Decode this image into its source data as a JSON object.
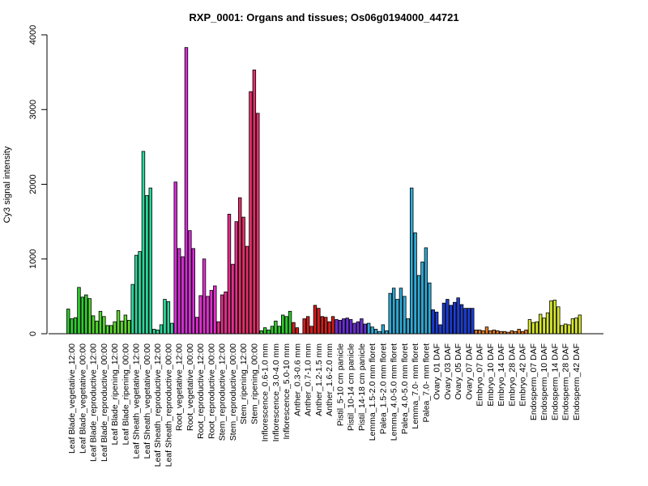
{
  "chart_data": {
    "type": "bar",
    "title": "RXP_0001: Organs and tissues; Os06g0194000_44721",
    "xlabel": "",
    "ylabel": "Cy3 signal intensity",
    "ylim": [
      0,
      4000
    ],
    "yticks": [
      0,
      1000,
      2000,
      3000,
      4000
    ],
    "grid": false,
    "legend": "none",
    "groups": [
      {
        "label": "Leaf Blade_vegetative_12:00",
        "color": "#2ecc2e",
        "values": [
          330,
          200,
          215
        ]
      },
      {
        "label": "Leaf Blade_vegetative_00:00",
        "color": "#2ecc2e",
        "values": [
          620,
          490,
          520
        ]
      },
      {
        "label": "Leaf Blade_reproductive_12:00",
        "color": "#4fd62e",
        "values": [
          470,
          240,
          170
        ]
      },
      {
        "label": "Leaf Blade_reproductive_00:00",
        "color": "#4fd62e",
        "values": [
          300,
          230,
          110
        ]
      },
      {
        "label": "Leaf Blade_ripening_12:00",
        "color": "#5ed62e",
        "values": [
          110,
          160,
          310
        ]
      },
      {
        "label": "Leaf Blade_ripening_00:00",
        "color": "#5ed62e",
        "values": [
          170,
          250,
          180
        ]
      },
      {
        "label": "Leaf Sheath_vegetative_12:00",
        "color": "#2ed69a",
        "values": [
          660,
          1050,
          1100
        ]
      },
      {
        "label": "Leaf Sheath_vegetative_00:00",
        "color": "#2ed69a",
        "values": [
          2440,
          1850,
          1950
        ]
      },
      {
        "label": "Leaf Sheath_reproductive_12:00",
        "color": "#2ed69a",
        "values": [
          60,
          50,
          120
        ]
      },
      {
        "label": "Leaf Sheath_reproductive_00:00",
        "color": "#2ed69a",
        "values": [
          460,
          430,
          140
        ]
      },
      {
        "label": "Root_vegetative_12:00",
        "color": "#d62ed6",
        "values": [
          2030,
          1140,
          1030
        ]
      },
      {
        "label": "Root_vegetative_00:00",
        "color": "#d62ed6",
        "values": [
          3830,
          1380,
          1140
        ]
      },
      {
        "label": "Root_reproductive_12:00",
        "color": "#e22ed0",
        "values": [
          220,
          510,
          1000
        ]
      },
      {
        "label": "Root_reproductive_00:00",
        "color": "#e22ed0",
        "values": [
          500,
          580,
          640
        ]
      },
      {
        "label": "Stem_reproductive_12:00",
        "color": "#e62e8c",
        "values": [
          160,
          520,
          560
        ]
      },
      {
        "label": "Stem_reproductive_00:00",
        "color": "#e62e8c",
        "values": [
          1600,
          930,
          1500
        ]
      },
      {
        "label": "Stem_ripening_12:00",
        "color": "#e62e6a",
        "values": [
          1820,
          1560,
          1170
        ]
      },
      {
        "label": "Stem_ripening_00:00",
        "color": "#e62e6a",
        "values": [
          3240,
          3530,
          2950
        ]
      },
      {
        "label": "Inflorescence_0.6-1.0 mm",
        "color": "#2ecc2e",
        "values": [
          40,
          80,
          50
        ]
      },
      {
        "label": "Inflorescence_3.0-4.0 mm",
        "color": "#2ecc2e",
        "values": [
          100,
          170,
          100
        ]
      },
      {
        "label": "Inflorescence_5.0-10 mm",
        "color": "#2ecc2e",
        "values": [
          250,
          230,
          300
        ]
      },
      {
        "label": "Anther_0.3-0.6 mm",
        "color": "#d61c1c",
        "values": [
          150,
          80,
          0
        ]
      },
      {
        "label": "Anther_0.7-1.0 mm",
        "color": "#d61c1c",
        "values": [
          200,
          230,
          100
        ]
      },
      {
        "label": "Anther_1.2-1.5 mm",
        "color": "#d61c1c",
        "values": [
          380,
          340,
          230
        ]
      },
      {
        "label": "Anther_1.6-2.0 mm",
        "color": "#d61c1c",
        "values": [
          220,
          160,
          230
        ]
      },
      {
        "label": "Pistil_5-10 cm panicle",
        "color": "#6a2ed6",
        "values": [
          190,
          180,
          200
        ]
      },
      {
        "label": "Pistil_10-14 cm panicle",
        "color": "#6a2ed6",
        "values": [
          210,
          190,
          140
        ]
      },
      {
        "label": "Pistil_14-18 cm panicle",
        "color": "#6a2ed6",
        "values": [
          160,
          200,
          130
        ]
      },
      {
        "label": "Lemma_1.5-2.0 mm floret",
        "color": "#2eaad6",
        "values": [
          140,
          90,
          60
        ]
      },
      {
        "label": "Palea_1.5-2.0 mm floret",
        "color": "#2eaad6",
        "values": [
          30,
          120,
          40
        ]
      },
      {
        "label": "Lemma_4.0-5.0 mm floret",
        "color": "#2eaad6",
        "values": [
          540,
          610,
          460
        ]
      },
      {
        "label": "Palea_4.0-5.0 mm floret",
        "color": "#2eaad6",
        "values": [
          610,
          500,
          200
        ]
      },
      {
        "label": "Lemma_7.0- mm floret",
        "color": "#2eaad6",
        "values": [
          1950,
          1350,
          780
        ]
      },
      {
        "label": "Palea_7.0- mm floret",
        "color": "#2eaad6",
        "values": [
          960,
          1150,
          680
        ]
      },
      {
        "label": "Ovary_01 DAF",
        "color": "#1c3cd6",
        "values": [
          320,
          290,
          120
        ]
      },
      {
        "label": "Ovary_03 DAF",
        "color": "#1c3cd6",
        "values": [
          410,
          460,
          380
        ]
      },
      {
        "label": "Ovary_05 DAF",
        "color": "#1c3cd6",
        "values": [
          420,
          480,
          390
        ]
      },
      {
        "label": "Ovary_07 DAF",
        "color": "#1c3cd6",
        "values": [
          340,
          340,
          340
        ]
      },
      {
        "label": "Embryo_07 DAF",
        "color": "#e67e22",
        "values": [
          50,
          50,
          40
        ]
      },
      {
        "label": "Embryo_10 DAF",
        "color": "#e67e22",
        "values": [
          90,
          40,
          50
        ]
      },
      {
        "label": "Embryo_14 DAF",
        "color": "#e67e22",
        "values": [
          40,
          30,
          30
        ]
      },
      {
        "label": "Embryo_28 DAF",
        "color": "#e67e22",
        "values": [
          20,
          40,
          30
        ]
      },
      {
        "label": "Embryo_42 DAF",
        "color": "#e67e22",
        "values": [
          60,
          30,
          50
        ]
      },
      {
        "label": "Endosperm_07 DAF",
        "color": "#d6e62e",
        "values": [
          190,
          150,
          160
        ]
      },
      {
        "label": "Endosperm_10 DAF",
        "color": "#d6e62e",
        "values": [
          260,
          210,
          280
        ]
      },
      {
        "label": "Endosperm_14 DAF",
        "color": "#d6e62e",
        "values": [
          440,
          450,
          360
        ]
      },
      {
        "label": "Endosperm_28 DAF",
        "color": "#d6e62e",
        "values": [
          110,
          130,
          120
        ]
      },
      {
        "label": "Endosperm_42 DAF",
        "color": "#d6e62e",
        "values": [
          200,
          210,
          250
        ]
      }
    ]
  }
}
